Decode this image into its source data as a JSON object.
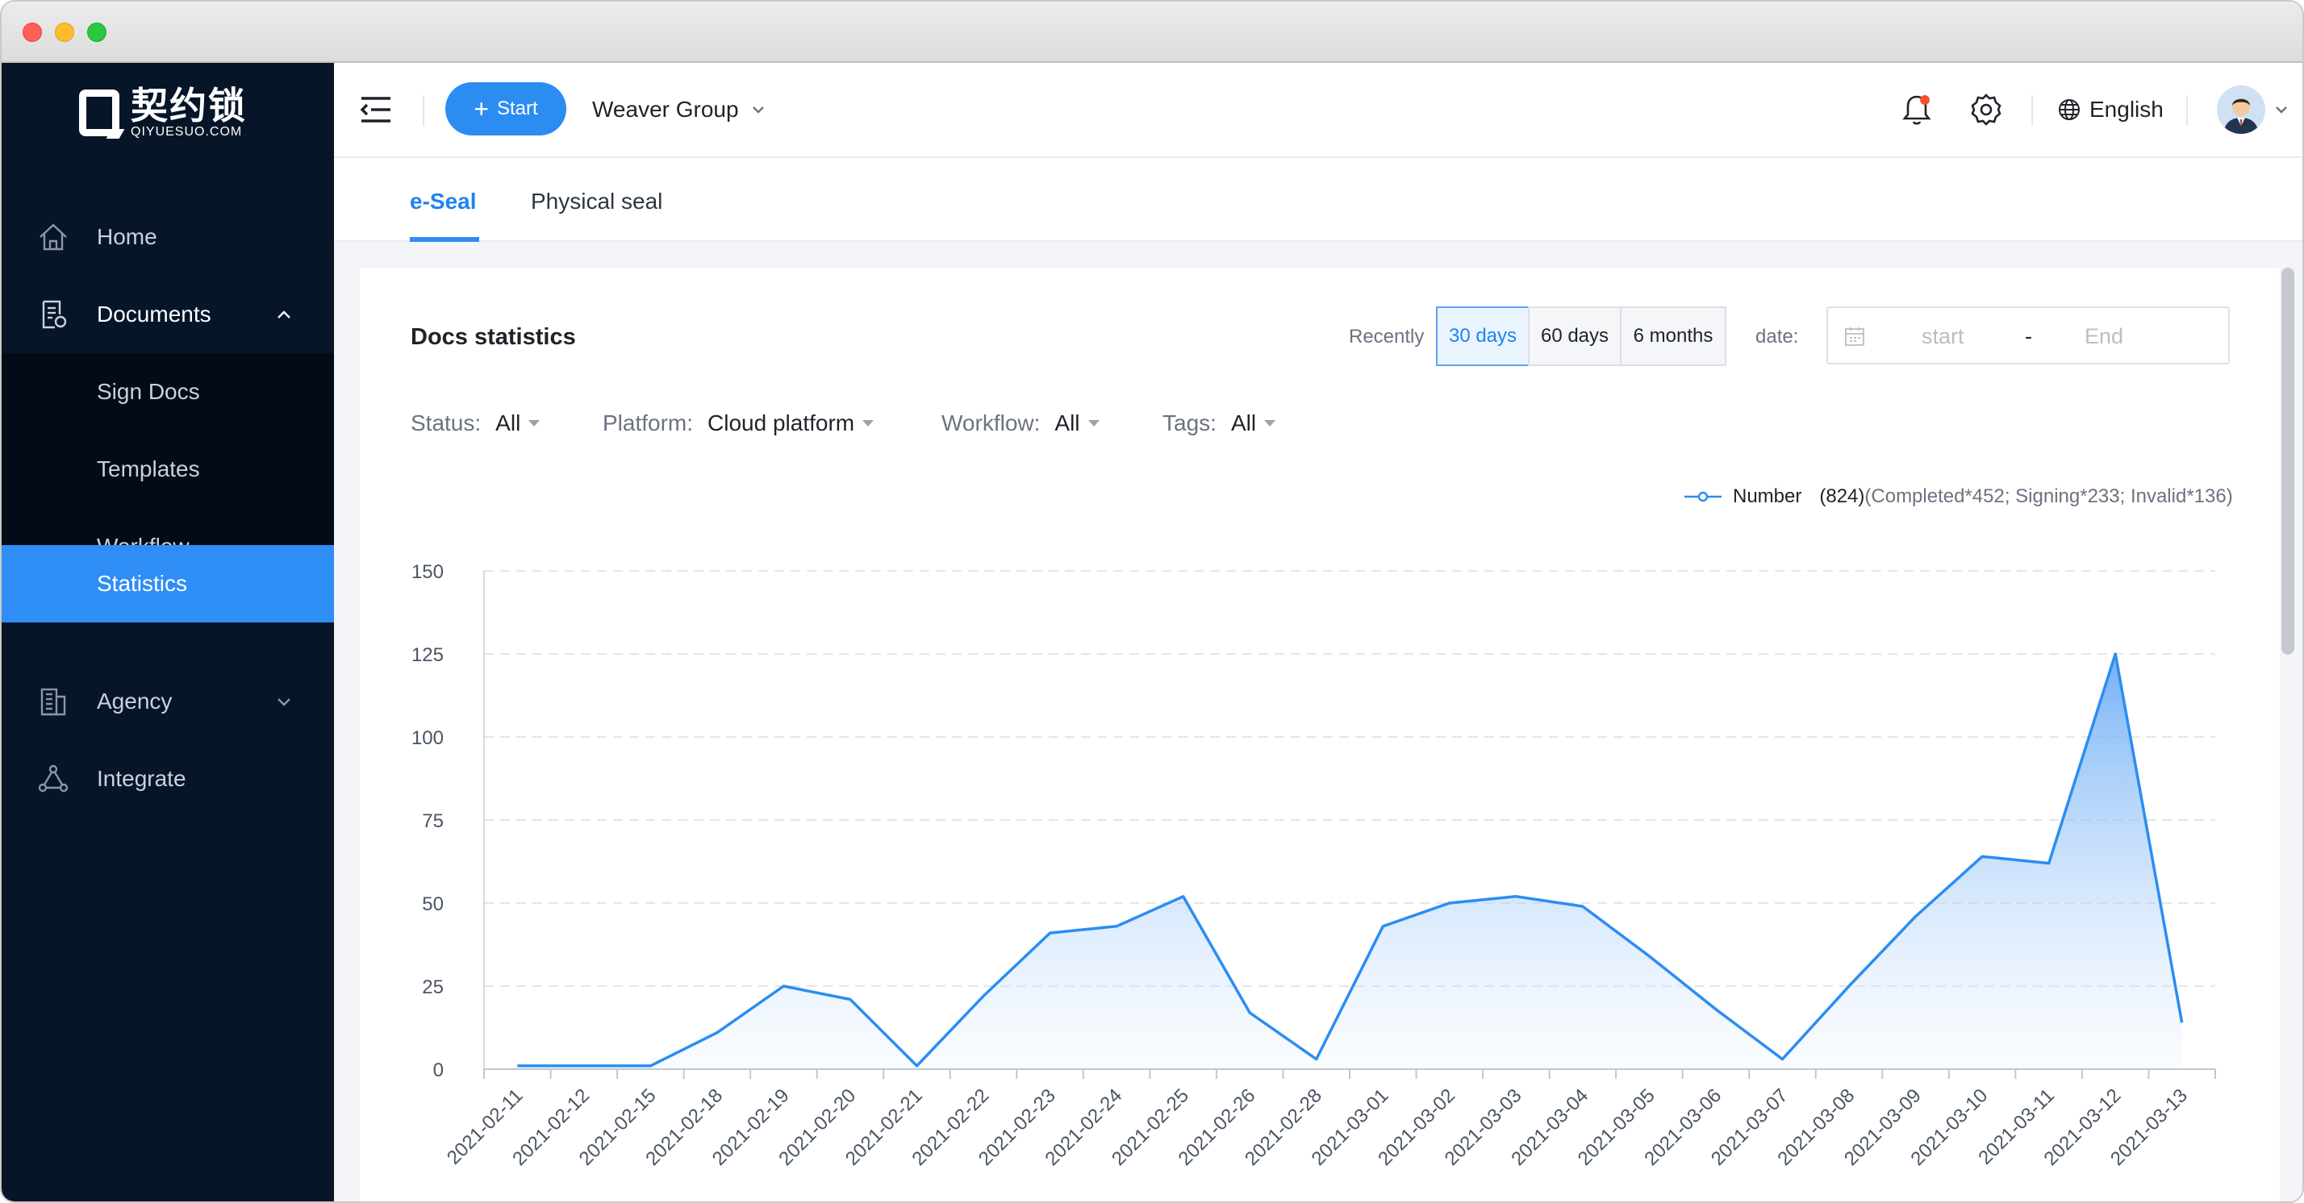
{
  "app": {
    "logo_cn": "契约锁",
    "logo_en": "QIYUESUO.COM"
  },
  "sidebar": {
    "items": [
      {
        "label": "Home",
        "icon": "home-icon"
      },
      {
        "label": "Documents",
        "icon": "document-icon",
        "expanded": true
      },
      {
        "label": "Sign Docs"
      },
      {
        "label": "Templates"
      },
      {
        "label": "Workflow"
      },
      {
        "label": "Statistics",
        "active": true
      },
      {
        "label": "Agency",
        "icon": "building-icon"
      },
      {
        "label": "Integrate",
        "icon": "integrate-icon"
      }
    ]
  },
  "header": {
    "start_label": "Start",
    "group": "Weaver Group",
    "language": "English"
  },
  "tabs": [
    {
      "label": "e-Seal",
      "active": true
    },
    {
      "label": "Physical seal",
      "active": false
    }
  ],
  "stats": {
    "title": "Docs statistics",
    "recently_label": "Recently",
    "ranges": [
      "30 days",
      "60 days",
      "6 months"
    ],
    "selected_range": "30 days",
    "date_label": "date:",
    "date_start_placeholder": "start",
    "date_separator": "-",
    "date_end_placeholder": "End"
  },
  "filters": [
    {
      "label": "Status:",
      "value": "All"
    },
    {
      "label": "Platform:",
      "value": "Cloud platform"
    },
    {
      "label": "Workflow:",
      "value": "All"
    },
    {
      "label": "Tags:",
      "value": "All"
    }
  ],
  "legend": {
    "name": "Number",
    "total": "(824)",
    "detail": "(Completed*452; Signing*233; Invalid*136)"
  },
  "colors": {
    "accent": "#2f8ef5",
    "sidebar_bg": "#071528",
    "line": "#2b8df2"
  },
  "chart_data": {
    "type": "area",
    "title": "",
    "xlabel": "",
    "ylabel": "",
    "ylim": [
      0,
      150
    ],
    "yticks": [
      0,
      25,
      50,
      75,
      100,
      125,
      150
    ],
    "grid": true,
    "legend_position": "top-right",
    "categories": [
      "2021-02-11",
      "2021-02-12",
      "2021-02-15",
      "2021-02-18",
      "2021-02-19",
      "2021-02-20",
      "2021-02-21",
      "2021-02-22",
      "2021-02-23",
      "2021-02-24",
      "2021-02-25",
      "2021-02-26",
      "2021-02-28",
      "2021-03-01",
      "2021-03-02",
      "2021-03-03",
      "2021-03-04",
      "2021-03-05",
      "2021-03-06",
      "2021-03-07",
      "2021-03-08",
      "2021-03-09",
      "2021-03-10",
      "2021-03-11",
      "2021-03-12",
      "2021-03-13"
    ],
    "series": [
      {
        "name": "Number",
        "values": [
          1,
          1,
          1,
          11,
          25,
          21,
          1,
          22,
          41,
          43,
          52,
          17,
          3,
          43,
          50,
          52,
          49,
          34,
          18,
          3,
          25,
          46,
          64,
          62,
          125,
          14
        ]
      }
    ]
  }
}
